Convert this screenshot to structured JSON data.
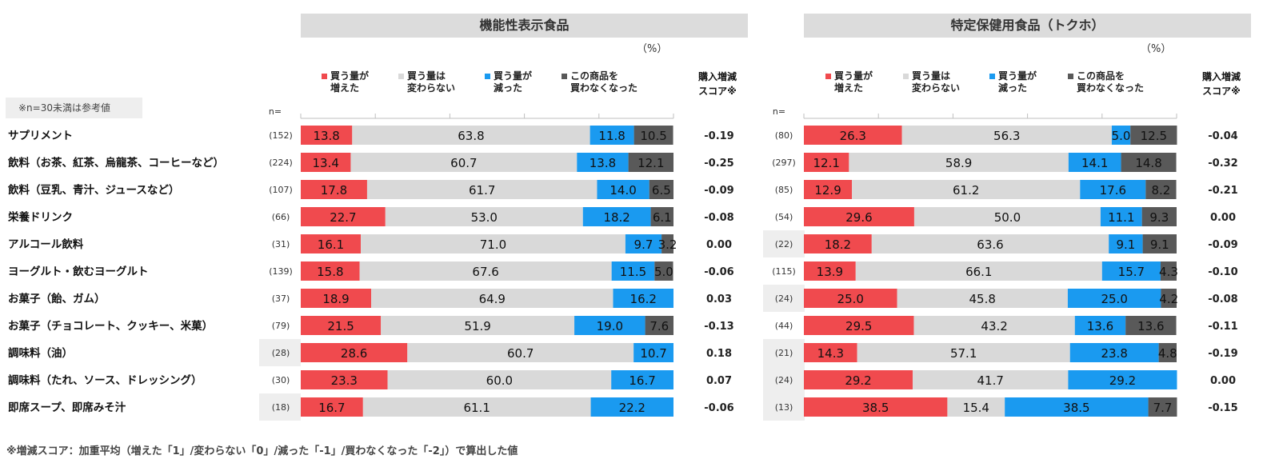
{
  "note": "※n=30未満は参考値",
  "footnote": "※増減スコア：加重平均（増えた「1」/変わらない「0」/減った「-1」/買わなくなった「-2」）で算出した値",
  "n_label": "n=",
  "pct_unit": "（%）",
  "score_header": [
    "購入増減",
    "スコア※"
  ],
  "legend": [
    {
      "lines": [
        "買う量が",
        "増えた"
      ],
      "color": "#f04a4e"
    },
    {
      "lines": [
        "買う量は",
        "変わらない"
      ],
      "color": "#d9d9d9"
    },
    {
      "lines": [
        "買う量が",
        "減った"
      ],
      "color": "#1a9af0"
    },
    {
      "lines": [
        "この商品を",
        "買わなくなった"
      ],
      "color": "#595959"
    }
  ],
  "categories": [
    "サプリメント",
    "飲料（お茶、紅茶、烏龍茶、コーヒーなど）",
    "飲料（豆乳、青汁、ジュースなど）",
    "栄養ドリンク",
    "アルコール飲料",
    "ヨーグルト・飲むヨーグルト",
    "お菓子（飴、ガム）",
    "お菓子（チョコレート、クッキー、米菓）",
    "調味料（油）",
    "調味料（たれ、ソース、ドレッシング）",
    "即席スープ、即席みそ汁"
  ],
  "chart_data": [
    {
      "type": "bar",
      "stacked": true,
      "orientation": "horizontal",
      "title": "機能性表示食品",
      "unit": "%",
      "series_names": [
        "買う量が増えた",
        "買う量は変わらない",
        "買う量が減った",
        "この商品を買わなくなった"
      ],
      "rows": [
        {
          "n": "(152)",
          "values": [
            13.8,
            63.8,
            11.8,
            10.5
          ],
          "score": "-0.19",
          "ref": false
        },
        {
          "n": "(224)",
          "values": [
            13.4,
            60.7,
            13.8,
            12.1
          ],
          "score": "-0.25",
          "ref": false
        },
        {
          "n": "(107)",
          "values": [
            17.8,
            61.7,
            14.0,
            6.5
          ],
          "score": "-0.09",
          "ref": false
        },
        {
          "n": "(66)",
          "values": [
            22.7,
            53.0,
            18.2,
            6.1
          ],
          "score": "-0.08",
          "ref": false
        },
        {
          "n": "(31)",
          "values": [
            16.1,
            71.0,
            9.7,
            3.2
          ],
          "score": "0.00",
          "ref": false
        },
        {
          "n": "(139)",
          "values": [
            15.8,
            67.6,
            11.5,
            5.0
          ],
          "score": "-0.06",
          "ref": false
        },
        {
          "n": "(37)",
          "values": [
            18.9,
            64.9,
            16.2,
            0
          ],
          "score": "0.03",
          "ref": false
        },
        {
          "n": "(79)",
          "values": [
            21.5,
            51.9,
            19.0,
            7.6
          ],
          "score": "-0.13",
          "ref": false
        },
        {
          "n": "(28)",
          "values": [
            28.6,
            60.7,
            10.7,
            0
          ],
          "score": "0.18",
          "ref": true
        },
        {
          "n": "(30)",
          "values": [
            23.3,
            60.0,
            16.7,
            0
          ],
          "score": "0.07",
          "ref": false
        },
        {
          "n": "(18)",
          "values": [
            16.7,
            61.1,
            22.2,
            0
          ],
          "score": "-0.06",
          "ref": true
        }
      ]
    },
    {
      "type": "bar",
      "stacked": true,
      "orientation": "horizontal",
      "title": "特定保健用食品（トクホ）",
      "unit": "%",
      "series_names": [
        "買う量が増えた",
        "買う量は変わらない",
        "買う量が減った",
        "この商品を買わなくなった"
      ],
      "rows": [
        {
          "n": "(80)",
          "values": [
            26.3,
            56.3,
            5.0,
            12.5
          ],
          "score": "-0.04",
          "ref": false
        },
        {
          "n": "(297)",
          "values": [
            12.1,
            58.9,
            14.1,
            14.8
          ],
          "score": "-0.32",
          "ref": false
        },
        {
          "n": "(85)",
          "values": [
            12.9,
            61.2,
            17.6,
            8.2
          ],
          "score": "-0.21",
          "ref": false
        },
        {
          "n": "(54)",
          "values": [
            29.6,
            50.0,
            11.1,
            9.3
          ],
          "score": "0.00",
          "ref": false
        },
        {
          "n": "(22)",
          "values": [
            18.2,
            63.6,
            9.1,
            9.1
          ],
          "score": "-0.09",
          "ref": true
        },
        {
          "n": "(115)",
          "values": [
            13.9,
            66.1,
            15.7,
            4.3
          ],
          "score": "-0.10",
          "ref": false
        },
        {
          "n": "(24)",
          "values": [
            25.0,
            45.8,
            25.0,
            4.2
          ],
          "score": "-0.08",
          "ref": true
        },
        {
          "n": "(44)",
          "values": [
            29.5,
            43.2,
            13.6,
            13.6
          ],
          "score": "-0.11",
          "ref": false
        },
        {
          "n": "(21)",
          "values": [
            14.3,
            57.1,
            23.8,
            4.8
          ],
          "score": "-0.19",
          "ref": true
        },
        {
          "n": "(24)",
          "values": [
            29.2,
            41.7,
            29.2,
            0
          ],
          "score": "0.00",
          "ref": true
        },
        {
          "n": "(13)",
          "values": [
            38.5,
            15.4,
            38.5,
            7.7
          ],
          "score": "-0.15",
          "ref": true
        }
      ]
    }
  ]
}
